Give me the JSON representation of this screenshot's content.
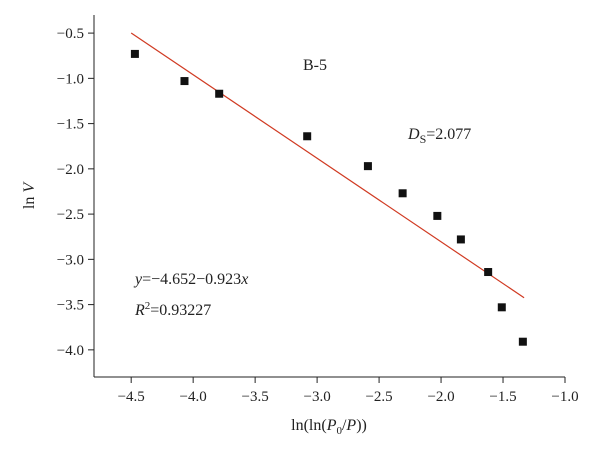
{
  "chart_data": {
    "type": "scatter",
    "xlabel": "ln(ln(P0/P))",
    "ylabel": "ln V",
    "xlim": [
      -4.8,
      -1.0
    ],
    "ylim": [
      -4.3,
      -0.3
    ],
    "xticks": [
      -4.5,
      -4.0,
      -3.5,
      -3.0,
      -2.5,
      -2.0,
      -1.5,
      -1.0
    ],
    "yticks": [
      -0.5,
      -1.0,
      -1.5,
      -2.0,
      -2.5,
      -3.0,
      -3.5,
      -4.0
    ],
    "xtick_labels": [
      "−4.5",
      "−4.0",
      "−3.5",
      "−3.0",
      "−2.5",
      "−2.0",
      "−1.5",
      "−1.0"
    ],
    "ytick_labels": [
      "−0.5",
      "−1.0",
      "−1.5",
      "−2.0",
      "−2.5",
      "−3.0",
      "−3.5",
      "−4.0"
    ],
    "grid": false,
    "series": [
      {
        "marker": "square",
        "color": "#111111",
        "x": [
          -4.47,
          -4.07,
          -3.79,
          -3.08,
          -2.59,
          -2.31,
          -2.03,
          -1.84,
          -1.62,
          -1.51,
          -1.34
        ],
        "y": [
          -0.73,
          -1.03,
          -1.17,
          -1.64,
          -1.97,
          -2.27,
          -2.52,
          -2.78,
          -3.14,
          -3.53,
          -3.91
        ]
      }
    ],
    "fit_line": {
      "color": "#d03a22",
      "intercept": -4.652,
      "slope": -0.923,
      "x_range": [
        -4.5,
        -1.33
      ]
    },
    "annotations": {
      "sample": "B-5",
      "ds_symbol": "D",
      "ds_sub": "S",
      "ds_value": "=2.077",
      "eq_var": "y",
      "eq_body": "=−4.652−0.923",
      "eq_x": "x",
      "r2_symbol": "R",
      "r2_sup": "2",
      "r2_value": "=0.93227"
    },
    "axis_labels": {
      "x_prefix": "ln(ln(",
      "x_p0": "P",
      "x_p0_sub": "0",
      "x_slash": "/",
      "x_p": "P",
      "x_suffix": "))",
      "y_prefix": "ln ",
      "y_var": "V"
    }
  }
}
